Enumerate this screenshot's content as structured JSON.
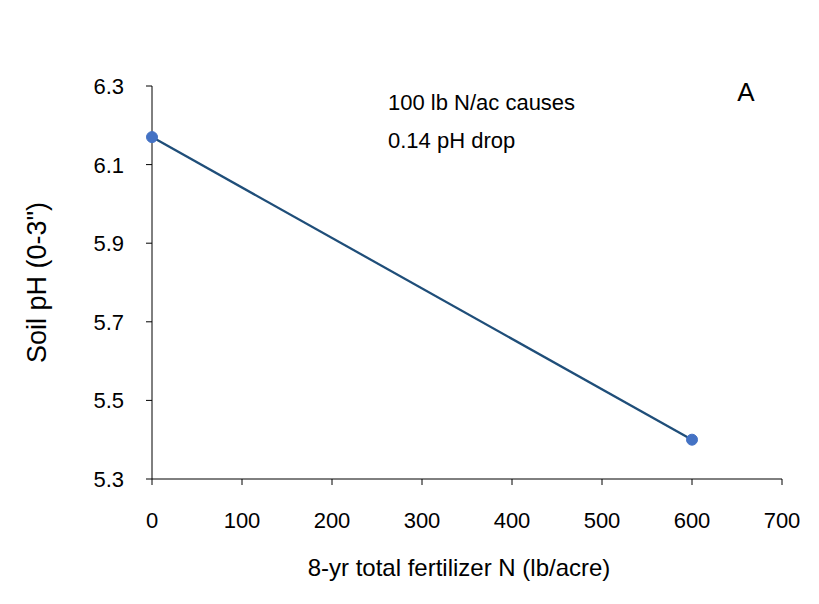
{
  "chart_data": {
    "type": "line",
    "panel_label": "A",
    "annotations": [
      "100 lb N/ac causes",
      "0.14 pH drop"
    ],
    "x_label": "8-yr total fertilizer N (lb/acre)",
    "y_label": "Soil pH (0-3\")",
    "x": [
      0,
      600
    ],
    "series": [
      {
        "name": "Soil pH",
        "color": "#1f4e79",
        "marker": "circle",
        "line_style": "solid",
        "values": [
          6.17,
          5.4
        ]
      }
    ],
    "xlim": [
      0,
      700
    ],
    "xticks": [
      0,
      100,
      200,
      300,
      400,
      500,
      600,
      700
    ],
    "ylim": [
      5.3,
      6.3
    ],
    "yticks": [
      5.3,
      5.5,
      5.7,
      5.9,
      6.1,
      6.3
    ],
    "grid": false
  }
}
